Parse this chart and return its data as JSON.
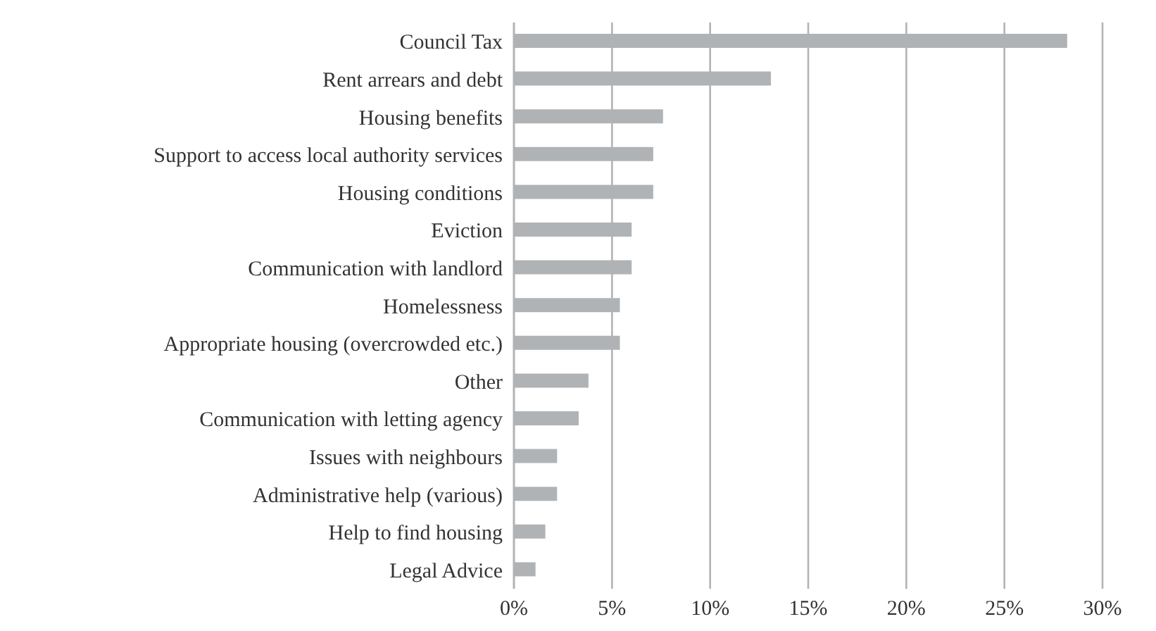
{
  "chart_data": {
    "type": "bar",
    "orientation": "horizontal",
    "categories": [
      "Council Tax",
      "Rent arrears and debt",
      "Housing benefits",
      "Support to access local authority services",
      "Housing conditions",
      "Eviction",
      "Communication with landlord",
      "Homelessness",
      "Appropriate housing (overcrowded etc.)",
      "Other",
      "Communication with letting agency",
      "Issues with neighbours",
      "Administrative help (various)",
      "Help to find housing",
      "Legal Advice"
    ],
    "values": [
      28.2,
      13.1,
      7.6,
      7.1,
      7.1,
      6.0,
      6.0,
      5.4,
      5.4,
      3.8,
      3.3,
      2.2,
      2.2,
      1.6,
      1.1
    ],
    "color": "#b0b3b6",
    "xlim": [
      0,
      30
    ],
    "xticks": [
      {
        "value": 0,
        "label": "0%"
      },
      {
        "value": 5,
        "label": "5%"
      },
      {
        "value": 10,
        "label": "10%"
      },
      {
        "value": 15,
        "label": "15%"
      },
      {
        "value": 20,
        "label": "20%"
      },
      {
        "value": 25,
        "label": "25%"
      },
      {
        "value": 30,
        "label": "30%"
      }
    ],
    "grid": "x"
  }
}
